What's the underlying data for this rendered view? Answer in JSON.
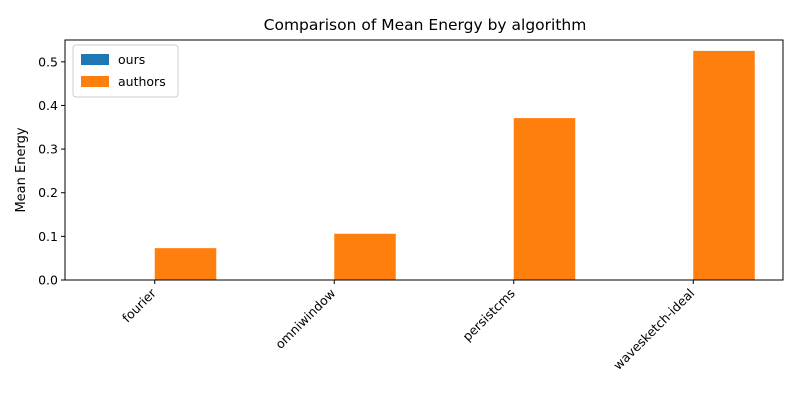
{
  "chart_data": {
    "type": "bar",
    "title": "Comparison of Mean Energy by algorithm",
    "xlabel": "",
    "ylabel": "Mean Energy",
    "categories": [
      "fourier",
      "omniwindow",
      "persistcms",
      "wavesketch-ideal"
    ],
    "series": [
      {
        "name": "ours",
        "color": "#1f77b4",
        "values": [
          0,
          0,
          0,
          0
        ]
      },
      {
        "name": "authors",
        "color": "#ff7f0e",
        "values": [
          0.073,
          0.106,
          0.371,
          0.525
        ]
      }
    ],
    "ylim": [
      0,
      0.55
    ],
    "yticks": [
      0.0,
      0.1,
      0.2,
      0.3,
      0.4,
      0.5
    ],
    "ytick_labels": [
      "0.0",
      "0.1",
      "0.2",
      "0.3",
      "0.4",
      "0.5"
    ],
    "grid": false,
    "legend_position": "top-left"
  }
}
